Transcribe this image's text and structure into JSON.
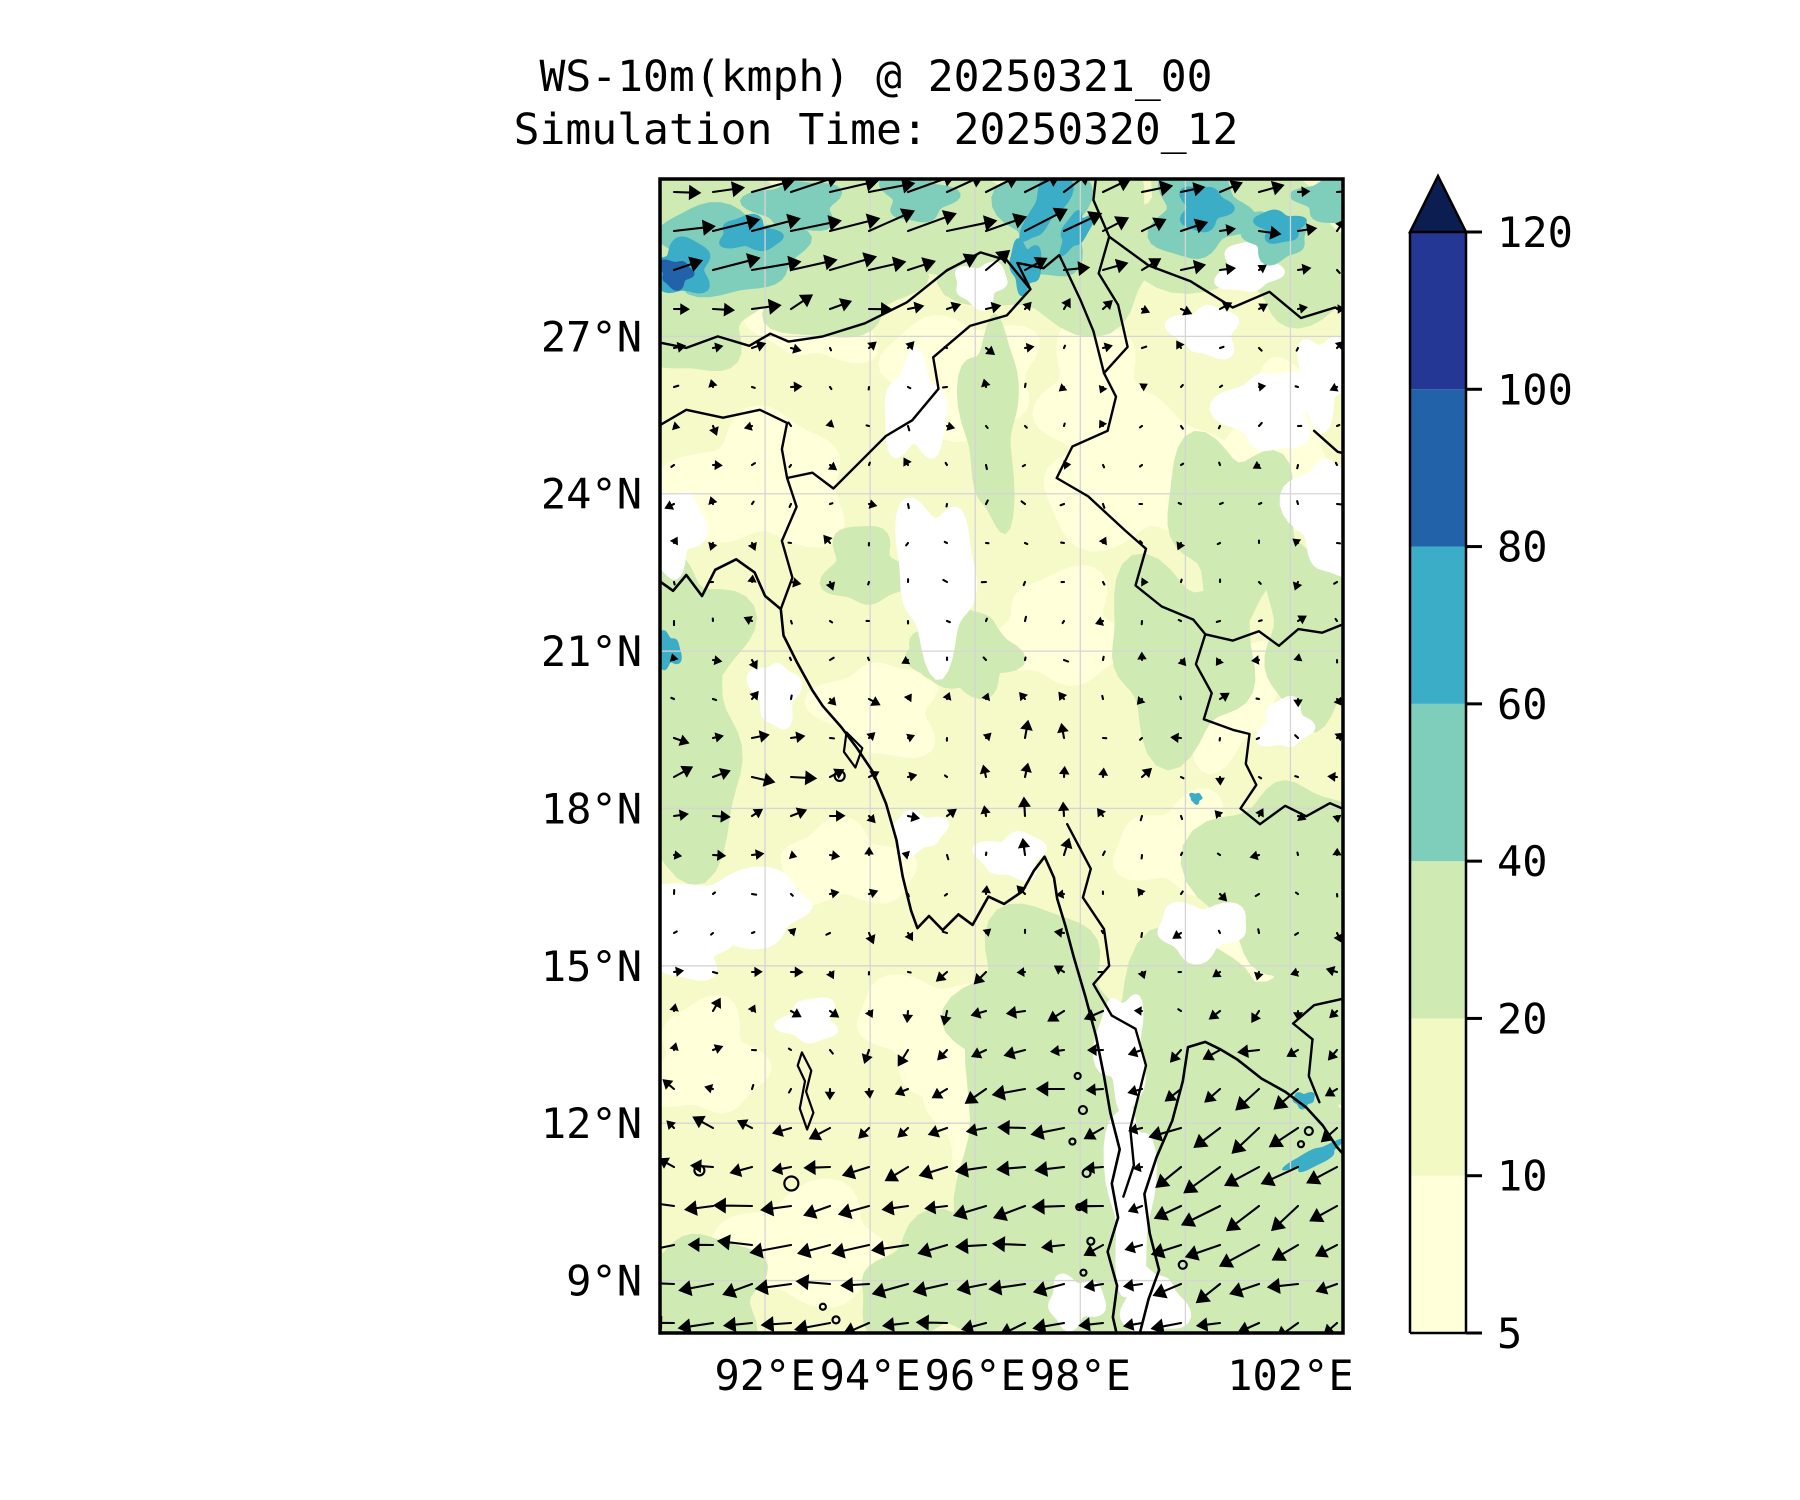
{
  "figure": {
    "title_line1": "WS-10m(kmph) @ 20250321_00",
    "title_line2": "Simulation Time: 20250320_12"
  },
  "map": {
    "base_color": "#f6fac8",
    "gridline_color": "#d5d5d5",
    "border_color": "#000000",
    "coastline_color": "#000000"
  },
  "chart_data": {
    "type": "heatmap",
    "subtype": "filled-contour wind speed map with quiver arrows (model output over Myanmar / Bay of Bengal)",
    "title": "WS-10m(kmph) @ 20250321_00",
    "subtitle": "Simulation Time: 20250320_12",
    "variable": "10 m wind speed",
    "units": "kmph",
    "map_extent": {
      "lon_min": 90,
      "lon_max": 103,
      "lat_min": 8,
      "lat_max": 30
    },
    "grid_on": true,
    "xticks": [
      {
        "lon": 92,
        "label": "92°E"
      },
      {
        "lon": 94,
        "label": "94°E"
      },
      {
        "lon": 96,
        "label": "96°E"
      },
      {
        "lon": 98,
        "label": "98°E"
      },
      {
        "lon": 100,
        "label": ""
      },
      {
        "lon": 102,
        "label": "102°E"
      }
    ],
    "yticks": [
      {
        "lat": 27,
        "label": "27°N"
      },
      {
        "lat": 24,
        "label": "24°N"
      },
      {
        "lat": 21,
        "label": "21°N"
      },
      {
        "lat": 18,
        "label": "18°N"
      },
      {
        "lat": 15,
        "label": "15°N"
      },
      {
        "lat": 12,
        "label": "12°N"
      },
      {
        "lat": 9,
        "label": "9°N"
      }
    ],
    "colorbar": {
      "levels": [
        5,
        10,
        20,
        40,
        60,
        80,
        100,
        120
      ],
      "tick_labels": [
        "5",
        "10",
        "20",
        "40",
        "60",
        "80",
        "100",
        "120"
      ],
      "extend": "max",
      "position": "right",
      "classes": [
        {
          "range": "lt5",
          "color": "#ffffff"
        },
        {
          "range": "5-10",
          "color": "#ffffd9"
        },
        {
          "range": "10-20",
          "color": "#f3f9c2"
        },
        {
          "range": "20-40",
          "color": "#cfeab3"
        },
        {
          "range": "40-60",
          "color": "#7fcdbb"
        },
        {
          "range": "60-80",
          "color": "#3cadc6"
        },
        {
          "range": "80-100",
          "color": "#2262a8"
        },
        {
          "range": "100-120",
          "color": "#253795"
        },
        {
          "range": "gt120",
          "color": "#0b1d51"
        }
      ]
    },
    "speed_regions": [
      {
        "level": "5-10",
        "lon": 91.9,
        "lat": 24.2,
        "rx": 1.6,
        "ry": 1.3
      },
      {
        "level": "5-10",
        "lon": 95.8,
        "lat": 26.3,
        "rx": 1.4,
        "ry": 1.1
      },
      {
        "level": "5-10",
        "lon": 99.2,
        "lat": 24.3,
        "rx": 1.7,
        "ry": 1.4
      },
      {
        "level": "5-10",
        "lon": 94.2,
        "lat": 19.9,
        "rx": 1.1,
        "ry": 0.9
      },
      {
        "level": "5-10",
        "lon": 97.6,
        "lat": 21.4,
        "rx": 1.3,
        "ry": 1.0
      },
      {
        "level": "5-10",
        "lon": 92.6,
        "lat": 9.6,
        "rx": 1.7,
        "ry": 1.1
      },
      {
        "level": "5-10",
        "lon": 95.2,
        "lat": 13.8,
        "rx": 1.4,
        "ry": 1.0
      },
      {
        "level": "5-10",
        "lon": 99.9,
        "lat": 17.3,
        "rx": 1.1,
        "ry": 0.9
      },
      {
        "level": "5-10",
        "lon": 101.6,
        "lat": 14.9,
        "rx": 1.0,
        "ry": 0.8
      },
      {
        "level": "5-10",
        "lon": 93.5,
        "lat": 16.9,
        "rx": 1.2,
        "ry": 0.8
      },
      {
        "level": "5-10",
        "lon": 98.3,
        "lat": 25.9,
        "rx": 1.1,
        "ry": 1.2
      },
      {
        "level": "5-10",
        "lon": 90.9,
        "lat": 13.2,
        "rx": 1.1,
        "ry": 1.0
      },
      {
        "level": "5-10",
        "lon": 96.4,
        "lat": 12.2,
        "rx": 1.2,
        "ry": 1.5
      },
      {
        "level": "5-10",
        "lon": 100.8,
        "lat": 20.2,
        "rx": 1.0,
        "ry": 1.2
      },
      {
        "level": "5-10",
        "lon": 93.0,
        "lat": 27.3,
        "rx": 1.1,
        "ry": 0.8
      },
      {
        "level": "5-10",
        "lon": 101.9,
        "lat": 24.8,
        "rx": 1.0,
        "ry": 1.6
      },
      {
        "level": "20-40",
        "lon": 91.4,
        "lat": 28.9,
        "rx": 2.7,
        "ry": 1.35
      },
      {
        "level": "20-40",
        "lon": 94.4,
        "lat": 29.35,
        "rx": 2.3,
        "ry": 1.05
      },
      {
        "level": "20-40",
        "lon": 97.6,
        "lat": 28.7,
        "rx": 2.1,
        "ry": 1.5
      },
      {
        "level": "20-40",
        "lon": 100.7,
        "lat": 29.1,
        "rx": 2.3,
        "ry": 1.25
      },
      {
        "level": "20-40",
        "lon": 102.6,
        "lat": 28.3,
        "rx": 1.5,
        "ry": 1.05
      },
      {
        "level": "20-40",
        "lon": 90.6,
        "lat": 27.5,
        "rx": 1.35,
        "ry": 1.15
      },
      {
        "level": "20-40",
        "lon": 93.2,
        "lat": 28.0,
        "rx": 1.6,
        "ry": 0.95
      },
      {
        "level": "20-40",
        "lon": 90.1,
        "lat": 19.2,
        "rx": 1.6,
        "ry": 2.3
      },
      {
        "level": "20-40",
        "lon": 90.3,
        "lat": 21.4,
        "rx": 1.2,
        "ry": 1.4
      },
      {
        "level": "20-40",
        "lon": 95.7,
        "lat": 21.1,
        "rx": 1.05,
        "ry": 0.75
      },
      {
        "level": "20-40",
        "lon": 96.3,
        "lat": 25.4,
        "rx": 0.55,
        "ry": 1.8
      },
      {
        "level": "20-40",
        "lon": 93.9,
        "lat": 22.6,
        "rx": 0.8,
        "ry": 0.7
      },
      {
        "level": "20-40",
        "lon": 95.8,
        "lat": 20.9,
        "rx": 0.9,
        "ry": 0.7
      },
      {
        "level": "20-40",
        "lon": 101.2,
        "lat": 10.4,
        "rx": 3.4,
        "ry": 2.9
      },
      {
        "level": "20-40",
        "lon": 99.6,
        "lat": 13.1,
        "rx": 1.9,
        "ry": 2.3
      },
      {
        "level": "20-40",
        "lon": 97.4,
        "lat": 11.0,
        "rx": 1.9,
        "ry": 3.3
      },
      {
        "level": "20-40",
        "lon": 97.15,
        "lat": 14.4,
        "rx": 1.6,
        "ry": 1.5
      },
      {
        "level": "20-40",
        "lon": 102.2,
        "lat": 13.9,
        "rx": 1.6,
        "ry": 1.5
      },
      {
        "level": "20-40",
        "lon": 100.7,
        "lat": 8.5,
        "rx": 2.6,
        "ry": 1.3
      },
      {
        "level": "20-40",
        "lon": 96.9,
        "lat": 8.7,
        "rx": 1.7,
        "ry": 1.2
      },
      {
        "level": "20-40",
        "lon": 95.4,
        "lat": 9.0,
        "rx": 1.6,
        "ry": 1.1
      },
      {
        "level": "20-40",
        "lon": 90.6,
        "lat": 8.8,
        "rx": 1.4,
        "ry": 1.1
      },
      {
        "level": "20-40",
        "lon": 101.9,
        "lat": 16.6,
        "rx": 1.5,
        "ry": 2.0
      },
      {
        "level": "20-40",
        "lon": 99.9,
        "lat": 20.9,
        "rx": 1.4,
        "ry": 1.7
      },
      {
        "level": "20-40",
        "lon": 102.5,
        "lat": 21.3,
        "rx": 1.1,
        "ry": 1.6
      },
      {
        "level": "20-40",
        "lon": 100.9,
        "lat": 23.4,
        "rx": 1.2,
        "ry": 1.7
      },
      {
        "level": "lt5",
        "lon": 91.3,
        "lat": 16.1,
        "rx": 1.55,
        "ry": 0.7
      },
      {
        "level": "lt5",
        "lon": 90.55,
        "lat": 15.3,
        "rx": 0.8,
        "ry": 0.5
      },
      {
        "level": "lt5",
        "lon": 95.25,
        "lat": 22.4,
        "rx": 0.75,
        "ry": 1.5
      },
      {
        "level": "lt5",
        "lon": 94.85,
        "lat": 25.6,
        "rx": 0.55,
        "ry": 1.0
      },
      {
        "level": "lt5",
        "lon": 96.7,
        "lat": 17.1,
        "rx": 0.6,
        "ry": 0.45
      },
      {
        "level": "lt5",
        "lon": 98.95,
        "lat": 10.6,
        "rx": 0.42,
        "ry": 1.9
      },
      {
        "level": "lt5",
        "lon": 98.8,
        "lat": 13.4,
        "rx": 0.45,
        "ry": 1.1
      },
      {
        "level": "lt5",
        "lon": 99.35,
        "lat": 8.55,
        "rx": 0.6,
        "ry": 0.7
      },
      {
        "level": "lt5",
        "lon": 94.9,
        "lat": 17.55,
        "rx": 0.5,
        "ry": 0.4
      },
      {
        "level": "lt5",
        "lon": 101.6,
        "lat": 25.6,
        "rx": 0.85,
        "ry": 0.8
      },
      {
        "level": "lt5",
        "lon": 102.7,
        "lat": 23.6,
        "rx": 0.7,
        "ry": 1.1
      },
      {
        "level": "lt5",
        "lon": 100.4,
        "lat": 27.1,
        "rx": 0.6,
        "ry": 0.5
      },
      {
        "level": "lt5",
        "lon": 92.85,
        "lat": 13.95,
        "rx": 0.55,
        "ry": 0.4
      },
      {
        "level": "lt5",
        "lon": 100.3,
        "lat": 15.7,
        "rx": 0.8,
        "ry": 0.55
      },
      {
        "level": "lt5",
        "lon": 101.9,
        "lat": 19.6,
        "rx": 0.5,
        "ry": 0.45
      },
      {
        "level": "lt5",
        "lon": 97.9,
        "lat": 8.6,
        "rx": 0.5,
        "ry": 0.5
      },
      {
        "level": "lt5",
        "lon": 92.2,
        "lat": 20.2,
        "rx": 0.45,
        "ry": 0.6
      },
      {
        "level": "lt5",
        "lon": 90.3,
        "lat": 23.3,
        "rx": 0.5,
        "ry": 0.8
      },
      {
        "level": "lt5",
        "lon": 96.1,
        "lat": 28.0,
        "rx": 0.5,
        "ry": 0.4
      },
      {
        "level": "lt5",
        "lon": 101.2,
        "lat": 28.3,
        "rx": 0.6,
        "ry": 0.45
      },
      {
        "level": "lt5",
        "lon": 102.6,
        "lat": 26.2,
        "rx": 0.5,
        "ry": 0.8
      },
      {
        "level": "40-60",
        "lon": 91.35,
        "lat": 28.65,
        "rx": 1.35,
        "ry": 0.8
      },
      {
        "level": "40-60",
        "lon": 97.35,
        "lat": 29.3,
        "rx": 0.85,
        "ry": 1.05
      },
      {
        "level": "40-60",
        "lon": 100.25,
        "lat": 29.35,
        "rx": 0.95,
        "ry": 0.8
      },
      {
        "level": "40-60",
        "lon": 94.9,
        "lat": 29.65,
        "rx": 0.65,
        "ry": 0.45
      },
      {
        "level": "40-60",
        "lon": 92.6,
        "lat": 29.5,
        "rx": 0.8,
        "ry": 0.5
      },
      {
        "level": "40-60",
        "lon": 102.8,
        "lat": 29.6,
        "rx": 0.7,
        "ry": 0.4
      },
      {
        "level": "40-60",
        "lon": 101.7,
        "lat": 28.9,
        "rx": 0.6,
        "ry": 0.45
      },
      {
        "level": "60-80",
        "lon": 90.4,
        "lat": 28.3,
        "rx": 0.6,
        "ry": 0.5
      },
      {
        "level": "60-80",
        "lon": 91.7,
        "lat": 28.95,
        "rx": 0.55,
        "ry": 0.33
      },
      {
        "level": "60-80",
        "lon": 97.4,
        "lat": 29.6,
        "rx": 0.3,
        "ry": 0.8,
        "rot": 25
      },
      {
        "level": "60-80",
        "lon": 97.9,
        "lat": 29.0,
        "rx": 0.22,
        "ry": 0.45,
        "rot": 30
      },
      {
        "level": "60-80",
        "lon": 100.35,
        "lat": 29.45,
        "rx": 0.5,
        "ry": 0.4
      },
      {
        "level": "60-80",
        "lon": 96.95,
        "lat": 28.35,
        "rx": 0.28,
        "ry": 0.5
      },
      {
        "level": "60-80",
        "lon": 101.8,
        "lat": 29.1,
        "rx": 0.45,
        "ry": 0.3
      },
      {
        "level": "60-80",
        "lon": 102.45,
        "lat": 11.35,
        "rx": 0.55,
        "ry": 0.16,
        "rot": -28
      },
      {
        "level": "60-80",
        "lon": 102.25,
        "lat": 12.45,
        "rx": 0.2,
        "ry": 0.15
      },
      {
        "level": "60-80",
        "lon": 90.15,
        "lat": 21.0,
        "rx": 0.22,
        "ry": 0.35
      },
      {
        "level": "60-80",
        "lon": 100.2,
        "lat": 18.2,
        "rx": 0.12,
        "ry": 0.1
      },
      {
        "level": "80-100",
        "lon": 90.3,
        "lat": 28.2,
        "rx": 0.32,
        "ry": 0.26
      }
    ],
    "wind_field": {
      "gaussians": [
        {
          "name": "himalayan-westerlies-w",
          "lon": 91.5,
          "lat": 28.8,
          "slon": 2.6,
          "slat": 1.7,
          "u": 27,
          "v": 5
        },
        {
          "name": "himalayan-westerlies-c",
          "lon": 94.5,
          "lat": 29.3,
          "slon": 2.8,
          "slat": 1.5,
          "u": 22,
          "v": 8
        },
        {
          "name": "himalayan-westerlies-e",
          "lon": 97.5,
          "lat": 29.4,
          "slon": 2.4,
          "slat": 1.6,
          "u": 14,
          "v": 9
        },
        {
          "name": "far-northeast-flow",
          "lon": 100.8,
          "lat": 29.1,
          "slon": 2.6,
          "slat": 1.7,
          "u": 12,
          "v": 2
        },
        {
          "name": "west-coast-onshore",
          "lon": 91.8,
          "lat": 18.4,
          "slon": 2.6,
          "slat": 1.5,
          "u": 13,
          "v": 2
        },
        {
          "name": "sittaung-valley-southerly",
          "lon": 97.1,
          "lat": 18.2,
          "slon": 1.1,
          "slat": 2.1,
          "u": 0,
          "v": 13
        },
        {
          "name": "south-bay-easterly",
          "lon": 94.0,
          "lat": 9.0,
          "slon": 9.0,
          "slat": 2.8,
          "u": -20,
          "v": -3
        },
        {
          "name": "andaman-easterly",
          "lon": 97.3,
          "lat": 12.5,
          "slon": 1.7,
          "slat": 2.3,
          "u": -14,
          "v": -1
        },
        {
          "name": "gulf-northeasterly",
          "lon": 101.4,
          "lat": 11.2,
          "slon": 2.1,
          "slat": 2.7,
          "u": -17,
          "v": -14
        },
        {
          "name": "delta-northerly",
          "lon": 95.6,
          "lat": 14.2,
          "slon": 1.6,
          "slat": 1.3,
          "u": -3,
          "v": -5
        }
      ],
      "vortices": [
        {
          "name": "bay-gyre",
          "lon": 92.2,
          "lat": 12.4,
          "strength": 6,
          "r2": 6,
          "sense": "clockwise"
        }
      ],
      "dampers": [
        {
          "name": "calm-west-bay",
          "lon": 91.2,
          "lat": 16.1,
          "slon": 1.5,
          "slat": 0.9,
          "factor": 0.9
        },
        {
          "name": "calm-peninsula",
          "lon": 98.95,
          "lat": 10.8,
          "slon": 0.55,
          "slat": 2.4,
          "factor": 0.72
        },
        {
          "name": "calm-interior",
          "lon": 96.3,
          "lat": 22.5,
          "slon": 2.7,
          "slat": 3.3,
          "factor": 0.62
        },
        {
          "name": "calm-northeast-inland",
          "lon": 101.3,
          "lat": 24.5,
          "slon": 2.2,
          "slat": 2.6,
          "factor": 0.45
        }
      ],
      "noise_amp": 2.6,
      "arrow_scale": 1.5,
      "min_len": 2.5,
      "max_len": 50
    },
    "quiver_grid": {
      "x0": 14,
      "y0": 13,
      "dx": 39,
      "dy": 39,
      "cols": 18,
      "rows": 30
    }
  }
}
